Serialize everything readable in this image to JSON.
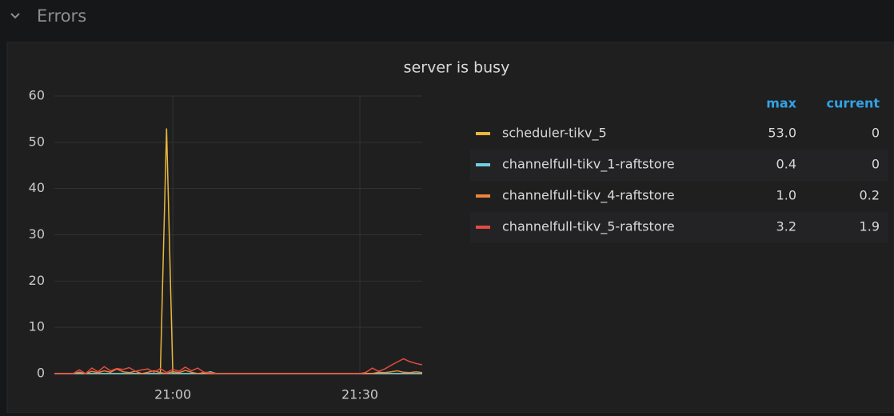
{
  "section": "Errors",
  "chart_data": {
    "type": "line",
    "title": "server is busy",
    "x": [
      "20:41",
      "20:42",
      "20:43",
      "20:44",
      "20:45",
      "20:46",
      "20:47",
      "20:48",
      "20:49",
      "20:50",
      "20:51",
      "20:52",
      "20:53",
      "20:54",
      "20:55",
      "20:56",
      "20:57",
      "20:58",
      "20:59",
      "21:00",
      "21:01",
      "21:02",
      "21:03",
      "21:04",
      "21:05",
      "21:06",
      "21:07",
      "21:08",
      "21:09",
      "21:10",
      "21:11",
      "21:12",
      "21:13",
      "21:14",
      "21:15",
      "21:16",
      "21:17",
      "21:18",
      "21:19",
      "21:20",
      "21:21",
      "21:22",
      "21:23",
      "21:24",
      "21:25",
      "21:26",
      "21:27",
      "21:28",
      "21:29",
      "21:30",
      "21:31",
      "21:32",
      "21:33",
      "21:34",
      "21:35",
      "21:36",
      "21:37",
      "21:38",
      "21:39",
      "21:40"
    ],
    "series": [
      {
        "name": "scheduler-tikv_5",
        "color": "#eab839",
        "legend_values": {
          "max": "53.0",
          "current": "0"
        },
        "values": [
          0,
          0,
          0,
          0,
          0,
          0,
          0,
          0,
          0,
          0,
          0,
          0,
          0,
          0,
          0,
          0,
          0,
          0,
          53,
          0,
          0,
          0,
          0,
          0,
          0,
          0,
          0,
          0,
          0,
          0,
          0,
          0,
          0,
          0,
          0,
          0,
          0,
          0,
          0,
          0,
          0,
          0,
          0,
          0,
          0,
          0,
          0,
          0,
          0,
          0,
          0,
          0,
          0,
          0,
          0,
          0,
          0,
          0,
          0,
          0
        ]
      },
      {
        "name": "channelfull-tikv_1-raftstore",
        "color": "#6ed0e0",
        "legend_values": {
          "max": "0.4",
          "current": "0"
        },
        "values": [
          0,
          0,
          0,
          0,
          0,
          0,
          0,
          0,
          0,
          0,
          0,
          0,
          0,
          0,
          0,
          0,
          0,
          0,
          0,
          0,
          0,
          0,
          0,
          0,
          0,
          0.4,
          0,
          0,
          0,
          0,
          0,
          0,
          0,
          0,
          0,
          0,
          0,
          0,
          0,
          0,
          0,
          0,
          0,
          0,
          0,
          0,
          0,
          0,
          0,
          0,
          0,
          0,
          0,
          0,
          0,
          0,
          0,
          0,
          0,
          0
        ]
      },
      {
        "name": "channelfull-tikv_4-raftstore",
        "color": "#ef843c",
        "legend_values": {
          "max": "1.0",
          "current": "0.2"
        },
        "values": [
          0,
          0,
          0,
          0,
          0.3,
          0,
          0.5,
          0.2,
          0.6,
          0.3,
          1.0,
          0.4,
          0.2,
          0.5,
          0,
          0.3,
          0.6,
          0.2,
          0,
          0.4,
          0.2,
          0.7,
          0.3,
          0,
          0.2,
          0,
          0,
          0,
          0,
          0,
          0,
          0,
          0,
          0,
          0,
          0,
          0,
          0,
          0,
          0,
          0,
          0,
          0,
          0,
          0,
          0,
          0,
          0,
          0,
          0,
          0,
          0,
          0.3,
          0.2,
          0.4,
          0.6,
          0.3,
          0.2,
          0.4,
          0.2
        ]
      },
      {
        "name": "channelfull-tikv_5-raftstore",
        "color": "#e24d42",
        "legend_values": {
          "max": "3.2",
          "current": "1.9"
        },
        "values": [
          0,
          0,
          0,
          0,
          0.8,
          0,
          1.2,
          0.4,
          1.5,
          0.6,
          1.1,
          0.9,
          1.3,
          0.5,
          0.8,
          1.0,
          0.3,
          1.1,
          0.2,
          0.9,
          0.5,
          1.4,
          0.6,
          1.2,
          0.3,
          0.2,
          0,
          0,
          0,
          0,
          0,
          0,
          0,
          0,
          0,
          0,
          0,
          0,
          0,
          0,
          0,
          0,
          0,
          0,
          0,
          0,
          0,
          0,
          0,
          0,
          0.3,
          1.2,
          0.5,
          1.0,
          1.8,
          2.5,
          3.2,
          2.6,
          2.2,
          1.9
        ]
      }
    ],
    "legend_columns": [
      "max",
      "current"
    ],
    "xlim": [
      "20:41",
      "21:40"
    ],
    "xticks": [
      "21:00",
      "21:30"
    ],
    "ylim": [
      0,
      60
    ],
    "yticks": [
      0,
      10,
      20,
      30,
      40,
      50,
      60
    ],
    "grid": true
  }
}
